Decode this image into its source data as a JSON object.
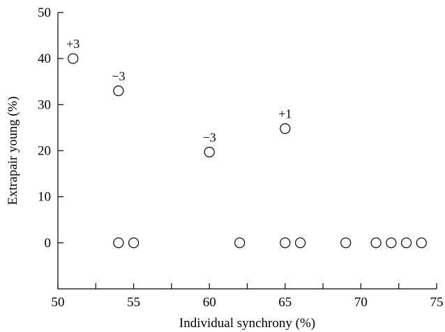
{
  "chart_data": {
    "type": "scatter",
    "title": "",
    "xlabel": "Individual synchrony (%)",
    "ylabel": "Extrapair young (%)",
    "xlim": [
      50,
      75
    ],
    "ylim": [
      -10,
      50
    ],
    "x_ticks": [
      50,
      55,
      60,
      65,
      70,
      75
    ],
    "x_minor_ticks": [
      52.5,
      57.5,
      62.5,
      67.5,
      72.5
    ],
    "y_ticks": [
      0,
      10,
      20,
      30,
      40,
      50
    ],
    "grid": false,
    "points": [
      {
        "x": 51,
        "y": 40
      },
      {
        "x": 54,
        "y": 33
      },
      {
        "x": 60,
        "y": 19.7
      },
      {
        "x": 65,
        "y": 24.8
      },
      {
        "x": 54,
        "y": 0
      },
      {
        "x": 55,
        "y": 0
      },
      {
        "x": 62,
        "y": 0
      },
      {
        "x": 65,
        "y": 0
      },
      {
        "x": 66,
        "y": 0
      },
      {
        "x": 69,
        "y": 0
      },
      {
        "x": 71,
        "y": 0
      },
      {
        "x": 72,
        "y": 0
      },
      {
        "x": 73,
        "y": 0
      },
      {
        "x": 74,
        "y": 0
      }
    ],
    "annotations": [
      {
        "text": "+3",
        "x": 51,
        "y": 40
      },
      {
        "text": "−3",
        "x": 54,
        "y": 33
      },
      {
        "text": "−3",
        "x": 60,
        "y": 19.7
      },
      {
        "text": "+1",
        "x": 65,
        "y": 24.8
      }
    ]
  }
}
